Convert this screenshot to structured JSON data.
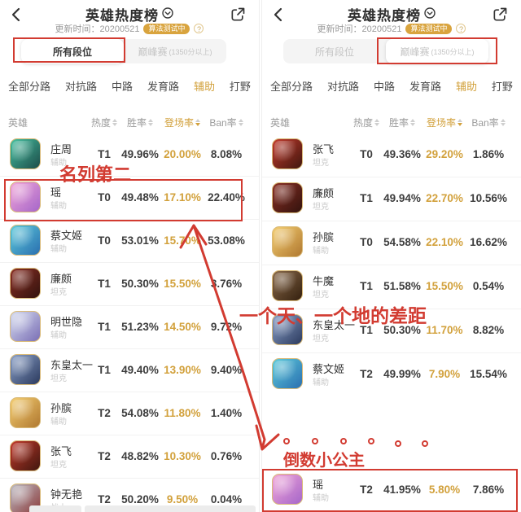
{
  "colors": {
    "accent_gold": "#d2a13c",
    "annotation_red": "#d23b31",
    "badge_bg": "#d9a43e"
  },
  "panels": [
    {
      "title": "英雄热度榜",
      "update_label": "更新时间：20200521",
      "badge_label": "算法测试中",
      "help_label": "?",
      "tabs": [
        {
          "label": "所有段位",
          "sub": "",
          "selected": true,
          "dim": false
        },
        {
          "label": "巅峰赛",
          "sub": "(1350分以上)",
          "selected": false,
          "dim": true
        }
      ],
      "nav": [
        {
          "label": "全部分路",
          "active": false
        },
        {
          "label": "对抗路",
          "active": false
        },
        {
          "label": "中路",
          "active": false
        },
        {
          "label": "发育路",
          "active": false
        },
        {
          "label": "辅助",
          "active": true
        },
        {
          "label": "打野",
          "active": false
        }
      ],
      "headers": {
        "hero": "英雄",
        "heat": "热度",
        "win": "胜率",
        "pick": "登场率",
        "ban": "Ban率"
      },
      "rows": [
        {
          "name": "庄周",
          "role": "辅助",
          "tier": "T1",
          "win": "49.96%",
          "pick": "20.00%",
          "ban": "8.08%",
          "avatar": [
            "#45c0a0",
            "#1d4c49"
          ]
        },
        {
          "name": "瑶",
          "role": "辅助",
          "tier": "T0",
          "win": "49.48%",
          "pick": "17.10%",
          "ban": "22.40%",
          "avatar": [
            "#f2a6d8",
            "#a566c9"
          ]
        },
        {
          "name": "蔡文姬",
          "role": "辅助",
          "tier": "T0",
          "win": "53.01%",
          "pick": "15.70%",
          "ban": "53.08%",
          "avatar": [
            "#5ecbdb",
            "#2a6fb0"
          ]
        },
        {
          "name": "廉颇",
          "role": "坦克",
          "tier": "T1",
          "win": "50.30%",
          "pick": "15.50%",
          "ban": "3.76%",
          "avatar": [
            "#8a2f24",
            "#33130e"
          ]
        },
        {
          "name": "明世隐",
          "role": "辅助",
          "tier": "T1",
          "win": "51.23%",
          "pick": "14.50%",
          "ban": "9.72%",
          "avatar": [
            "#d6dcf0",
            "#7a6fb5"
          ]
        },
        {
          "name": "东皇太一",
          "role": "坦克",
          "tier": "T1",
          "win": "49.40%",
          "pick": "13.90%",
          "ban": "9.40%",
          "avatar": [
            "#8aa0c8",
            "#2b3a5e"
          ]
        },
        {
          "name": "孙膑",
          "role": "辅助",
          "tier": "T2",
          "win": "54.08%",
          "pick": "11.80%",
          "ban": "1.40%",
          "avatar": [
            "#f4ce72",
            "#b07830"
          ]
        },
        {
          "name": "张飞",
          "role": "坦克",
          "tier": "T2",
          "win": "48.82%",
          "pick": "10.30%",
          "ban": "0.76%",
          "avatar": [
            "#c23a2b",
            "#41170f"
          ]
        },
        {
          "name": "钟无艳",
          "role": "战士",
          "tier": "T2",
          "win": "50.20%",
          "pick": "9.50%",
          "ban": "0.04%",
          "avatar": [
            "#bcbcc4",
            "#8c3b3b"
          ]
        }
      ]
    },
    {
      "title": "英雄热度榜",
      "update_label": "更新时间：20200521",
      "badge_label": "算法测试中",
      "help_label": "?",
      "tabs": [
        {
          "label": "所有段位",
          "sub": "",
          "selected": false,
          "dim": true
        },
        {
          "label": "巅峰赛",
          "sub": "(1350分以上)",
          "selected": true,
          "dim": true
        }
      ],
      "nav": [
        {
          "label": "全部分路",
          "active": false
        },
        {
          "label": "对抗路",
          "active": false
        },
        {
          "label": "中路",
          "active": false
        },
        {
          "label": "发育路",
          "active": false
        },
        {
          "label": "辅助",
          "active": true
        },
        {
          "label": "打野",
          "active": false
        }
      ],
      "headers": {
        "hero": "英雄",
        "heat": "热度",
        "win": "胜率",
        "pick": "登场率",
        "ban": "Ban率"
      },
      "rows": [
        {
          "name": "张飞",
          "role": "坦克",
          "tier": "T0",
          "win": "49.36%",
          "pick": "29.20%",
          "ban": "1.86%",
          "avatar": [
            "#c23a2b",
            "#41170f"
          ]
        },
        {
          "name": "廉颇",
          "role": "坦克",
          "tier": "T1",
          "win": "49.94%",
          "pick": "22.70%",
          "ban": "10.56%",
          "avatar": [
            "#8a2f24",
            "#33130e"
          ]
        },
        {
          "name": "孙膑",
          "role": "辅助",
          "tier": "T0",
          "win": "54.58%",
          "pick": "22.10%",
          "ban": "16.62%",
          "avatar": [
            "#f4ce72",
            "#b07830"
          ]
        },
        {
          "name": "牛魔",
          "role": "坦克",
          "tier": "T1",
          "win": "51.58%",
          "pick": "15.50%",
          "ban": "0.54%",
          "avatar": [
            "#8a6a4a",
            "#34200f"
          ]
        },
        {
          "name": "东皇太一",
          "role": "坦克",
          "tier": "T1",
          "win": "50.30%",
          "pick": "11.70%",
          "ban": "8.82%",
          "avatar": [
            "#8aa0c8",
            "#2b3a5e"
          ]
        },
        {
          "name": "蔡文姬",
          "role": "辅助",
          "tier": "T2",
          "win": "49.99%",
          "pick": "7.90%",
          "ban": "15.54%",
          "avatar": [
            "#5ecbdb",
            "#2a6fb0"
          ]
        },
        {
          "name": "瑶",
          "role": "辅助",
          "tier": "T2",
          "win": "41.95%",
          "pick": "5.80%",
          "ban": "7.86%",
          "avatar": [
            "#f2a6d8",
            "#a566c9"
          ]
        }
      ]
    }
  ],
  "annotations": {
    "rank_label": "名列第二",
    "gap_label": "一个天、一个地的差距",
    "last_label": "倒数小公主",
    "dots_count": 6
  }
}
